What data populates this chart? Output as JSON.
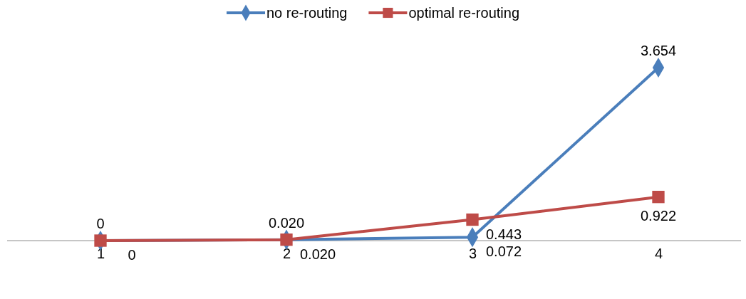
{
  "chart_data": {
    "type": "line",
    "categories": [
      "1",
      "2",
      "3",
      "4"
    ],
    "series": [
      {
        "name": "no re-routing",
        "color": "#4a7ebb",
        "marker": "diamond",
        "values": [
          0,
          0.02,
          0.072,
          3.654
        ],
        "value_labels": [
          "0",
          "0.020",
          "0.072",
          "3.654"
        ]
      },
      {
        "name": "optimal re-routing",
        "color": "#be4b48",
        "marker": "square",
        "values": [
          0,
          0.02,
          0.443,
          0.922
        ],
        "value_labels": [
          "0",
          "0.020",
          "0.443",
          "0.922"
        ]
      }
    ],
    "legend": "top"
  }
}
